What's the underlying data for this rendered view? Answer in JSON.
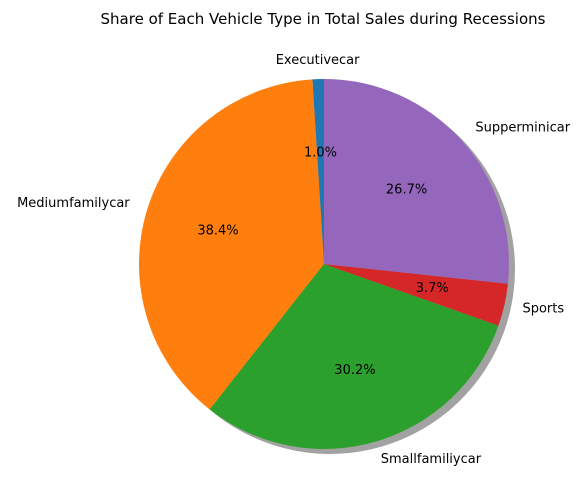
{
  "chart_data": {
    "type": "pie",
    "title": "Share of Each Vehicle Type in Total Sales during Recessions",
    "start_angle_deg": 90,
    "direction": "counterclockwise",
    "shadow": true,
    "slices": [
      {
        "label": "Executivecar",
        "pct": 1.0,
        "pct_text": "1.0%",
        "color": "#1f77b4"
      },
      {
        "label": "Mediumfamilycar",
        "pct": 38.4,
        "pct_text": "38.4%",
        "color": "#ff7f0e"
      },
      {
        "label": "Smallfamiliycar",
        "pct": 30.2,
        "pct_text": "30.2%",
        "color": "#2ca02c"
      },
      {
        "label": "Sports",
        "pct": 3.7,
        "pct_text": "3.7%",
        "color": "#d62728"
      },
      {
        "label": "Supperminicar",
        "pct": 26.7,
        "pct_text": "26.7%",
        "color": "#9467bd"
      }
    ]
  }
}
